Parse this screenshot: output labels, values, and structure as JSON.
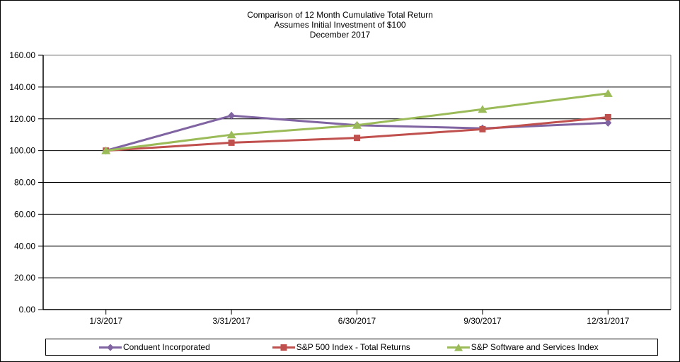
{
  "chart_data": {
    "type": "line",
    "title": "Comparison of 12 Month Cumulative Total Return",
    "subtitle": "Assumes Initial Investment of $100",
    "subtitle2": "December 2017",
    "categories": [
      "1/3/2017",
      "3/31/2017",
      "6/30/2017",
      "9/30/2017",
      "12/31/2017"
    ],
    "series": [
      {
        "name": "Conduent Incorporated",
        "color": "#8064A2",
        "marker": "diamond",
        "values": [
          100,
          122,
          116,
          114,
          117.5
        ]
      },
      {
        "name": "S&P 500 Index - Total Returns",
        "color": "#C0504D",
        "marker": "square",
        "values": [
          100,
          105,
          108,
          113.5,
          121
        ]
      },
      {
        "name": "S&P Software and Services Index",
        "color": "#9BBB59",
        "marker": "triangle",
        "values": [
          100,
          110,
          116,
          126,
          136
        ]
      }
    ],
    "ylim": [
      0,
      160
    ],
    "ytick_step": 20,
    "ytick_decimals": 2,
    "grid": true,
    "legend_position": "bottom",
    "colors": {
      "gridline": "#000000",
      "plot_border": "#808080",
      "axis": "#000000",
      "text": "#000000"
    }
  }
}
